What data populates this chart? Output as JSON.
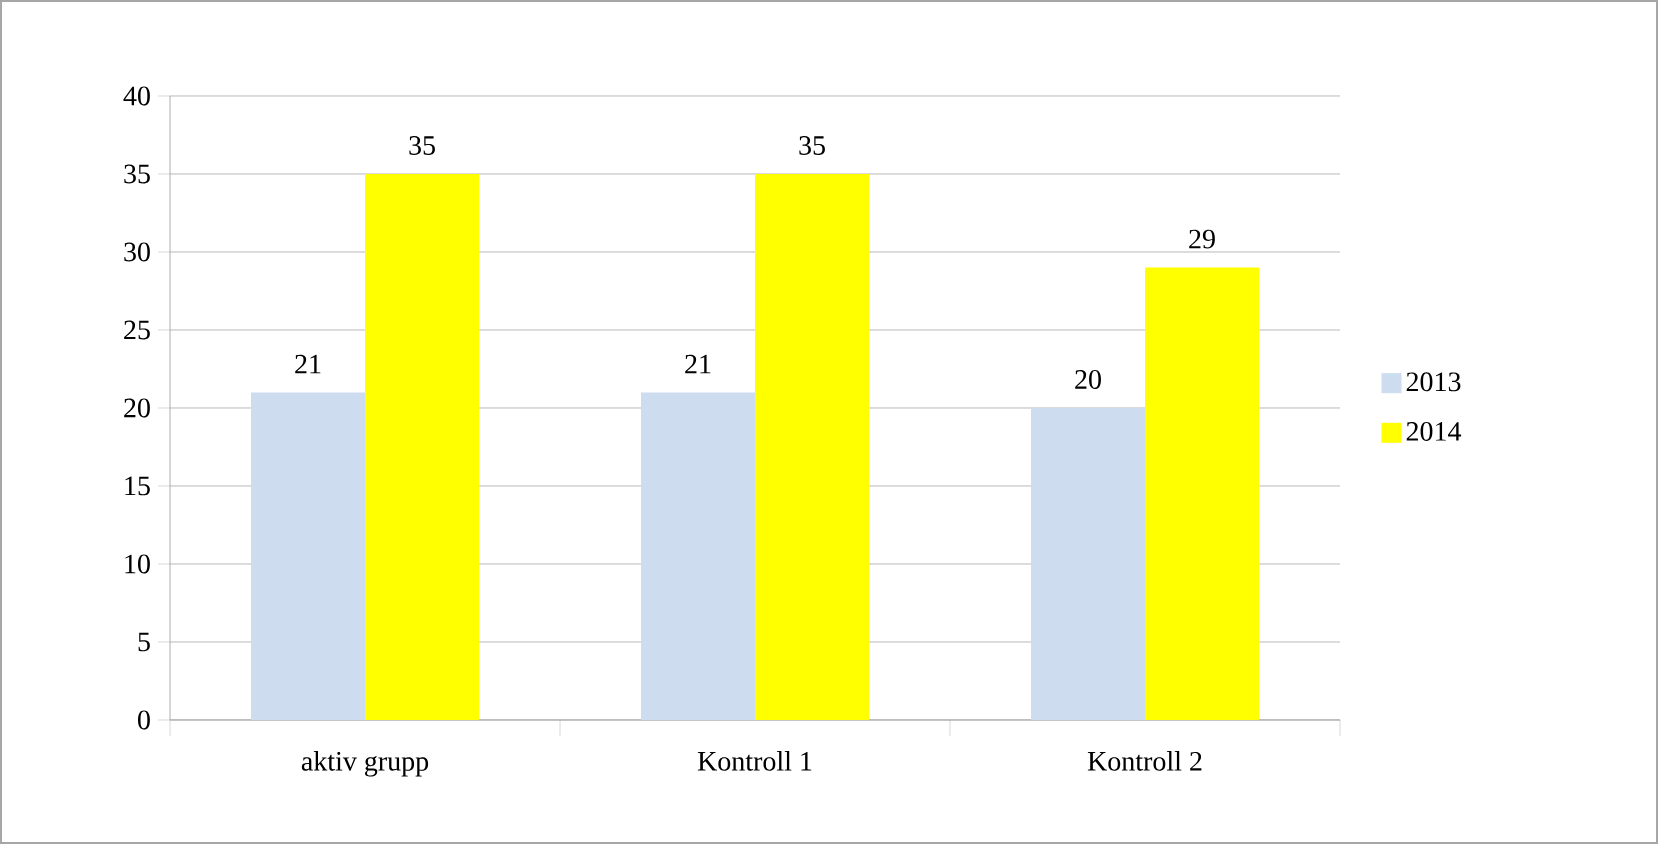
{
  "chart_data": {
    "type": "bar",
    "categories": [
      "aktiv grupp",
      "Kontroll 1",
      "Kontroll 2"
    ],
    "series": [
      {
        "name": "2013",
        "color": "#cddcef",
        "values": [
          21,
          21,
          20
        ]
      },
      {
        "name": "2014",
        "color": "#ffff00",
        "values": [
          35,
          35,
          29
        ]
      }
    ],
    "ylim": [
      0,
      40
    ],
    "yticks": [
      0,
      5,
      10,
      15,
      20,
      25,
      30,
      35,
      40
    ],
    "grid": "y",
    "legend": "right",
    "data_labels": true
  }
}
